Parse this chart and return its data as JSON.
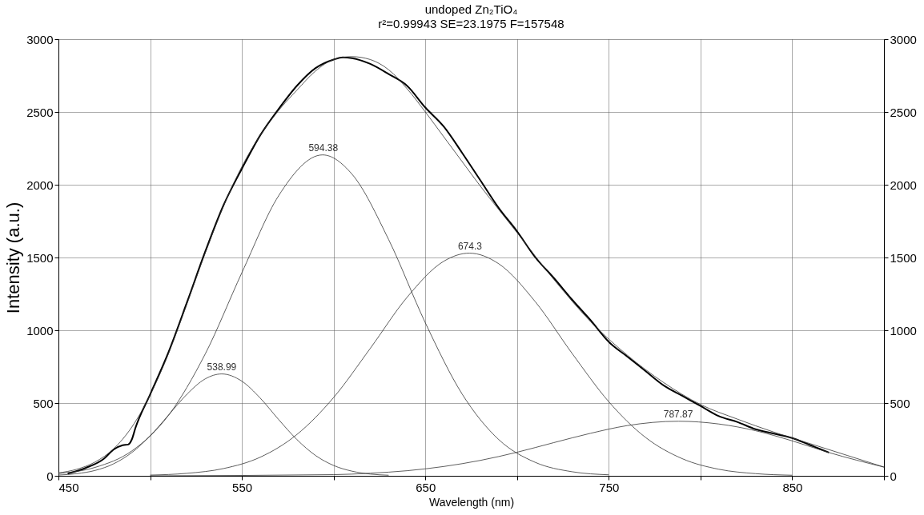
{
  "chart_data": {
    "type": "line",
    "title": "undoped Zn₂TiO₄",
    "subtitle": "r²=0.99943  SE=23.1975  F=157548",
    "xlabel": "Wavelength (nm)",
    "ylabel": "Intensity (a.u.)",
    "xlim": [
      450,
      900
    ],
    "xticks": [
      450,
      {
        "value": 500,
        "label": null
      },
      550,
      {
        "value": 600,
        "label": null
      },
      650,
      {
        "value": 700,
        "label": null
      },
      750,
      {
        "value": 800,
        "label": null
      },
      850,
      {
        "value": 900,
        "label": null
      }
    ],
    "ylim": [
      0,
      3000
    ],
    "yticks": [
      0,
      500,
      1000,
      1500,
      2000,
      2500,
      3000
    ],
    "y2lim": [
      0,
      3000
    ],
    "y2ticks": [
      0,
      500,
      1000,
      1500,
      2000,
      2500,
      3000
    ],
    "grid": true,
    "marker": "none",
    "line_style": "solid",
    "series": [
      {
        "color": "#000000",
        "x": [
          455,
          465,
          475,
          480,
          485,
          488,
          490,
          492,
          500,
          510,
          520,
          530,
          540,
          550,
          560,
          570,
          580,
          590,
          600,
          605,
          610,
          620,
          630,
          640,
          650,
          660,
          670,
          680,
          690,
          700,
          710,
          720,
          730,
          740,
          750,
          760,
          770,
          780,
          790,
          800,
          810,
          820,
          830,
          840,
          850,
          860,
          870
        ],
        "values": [
          15,
          55,
          120,
          180,
          210,
          215,
          250,
          330,
          560,
          850,
          1190,
          1540,
          1860,
          2110,
          2340,
          2520,
          2680,
          2800,
          2860,
          2875,
          2870,
          2830,
          2760,
          2680,
          2530,
          2400,
          2220,
          2030,
          1840,
          1680,
          1500,
          1360,
          1210,
          1070,
          920,
          820,
          720,
          620,
          550,
          480,
          410,
          370,
          320,
          290,
          260,
          210,
          160
        ]
      },
      {
        "color": "#333333",
        "x": [
          450,
          460,
          470,
          480,
          490,
          500,
          510,
          520,
          530,
          540,
          550,
          560,
          570,
          580,
          590,
          600,
          610,
          620,
          630,
          640,
          650,
          660,
          670,
          680,
          690,
          700,
          720,
          740,
          760,
          780,
          800,
          820,
          840,
          860,
          880,
          900
        ],
        "values": [
          20,
          45,
          95,
          185,
          335,
          555,
          840,
          1180,
          1530,
          1855,
          2125,
          2340,
          2510,
          2650,
          2780,
          2860,
          2880,
          2860,
          2790,
          2660,
          2500,
          2330,
          2160,
          1990,
          1830,
          1670,
          1350,
          1060,
          830,
          640,
          490,
          390,
          300,
          220,
          140,
          60
        ]
      },
      {
        "color": "#333333",
        "x": [
          450,
          460,
          470,
          480,
          490,
          500,
          510,
          520,
          530,
          539,
          550,
          560,
          570,
          580,
          590,
          600,
          610,
          620,
          630
        ],
        "values": [
          5,
          15,
          37,
          82,
          160,
          275,
          417,
          560,
          666,
          700,
          650,
          534,
          387,
          249,
          141,
          71,
          32,
          12,
          4
        ]
      },
      {
        "color": "#333333",
        "x": [
          450,
          470,
          490,
          510,
          530,
          550,
          570,
          594,
          610,
          630,
          650,
          670,
          690,
          710,
          730,
          750
        ],
        "values": [
          16,
          58,
          171,
          416,
          837,
          1396,
          1924,
          2205,
          2073,
          1623,
          1051,
          563,
          249,
          92,
          28,
          7
        ]
      },
      {
        "color": "#333333",
        "x": [
          500,
          520,
          540,
          560,
          580,
          600,
          620,
          640,
          660,
          674,
          690,
          710,
          730,
          750,
          770,
          790,
          810,
          830,
          850
        ],
        "values": [
          5,
          17,
          50,
          128,
          284,
          538,
          876,
          1226,
          1474,
          1530,
          1457,
          1195,
          841,
          509,
          264,
          118,
          45,
          15,
          4
        ]
      },
      {
        "color": "#333333",
        "x": [
          500,
          600,
          620,
          640,
          660,
          680,
          700,
          720,
          740,
          760,
          788,
          810,
          830,
          850,
          870,
          900
        ],
        "values": [
          0,
          8,
          18,
          35,
          64,
          106,
          162,
          228,
          292,
          345,
          375,
          356,
          310,
          240,
          160,
          60
        ]
      }
    ],
    "annotations": [
      {
        "text": "538.99",
        "x": 538.99,
        "y": 700
      },
      {
        "text": "594.38",
        "x": 594.38,
        "y": 2205
      },
      {
        "text": "674.3",
        "x": 674.3,
        "y": 1530
      },
      {
        "text": "787.87",
        "x": 787.87,
        "y": 375
      }
    ]
  }
}
